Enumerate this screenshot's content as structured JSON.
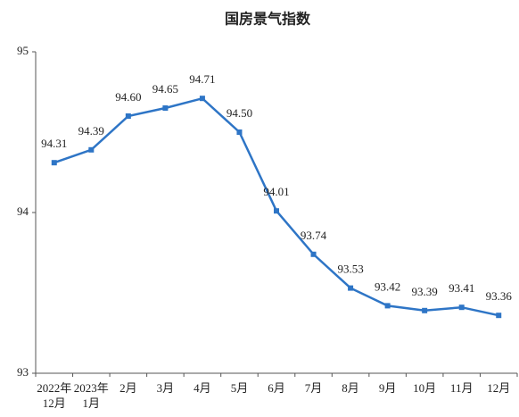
{
  "chart_data": {
    "type": "line",
    "title": "国房景气指数",
    "categories": [
      "2022年\n12月",
      "2023年\n1月",
      "2月",
      "3月",
      "4月",
      "5月",
      "6月",
      "7月",
      "8月",
      "9月",
      "10月",
      "11月",
      "12月"
    ],
    "values": [
      94.31,
      94.39,
      94.6,
      94.65,
      94.71,
      94.5,
      94.01,
      93.74,
      93.53,
      93.42,
      93.39,
      93.41,
      93.36
    ],
    "value_labels": [
      "94.31",
      "94.39",
      "94.60",
      "94.65",
      "94.71",
      "94.50",
      "94.01",
      "93.74",
      "93.53",
      "93.42",
      "93.39",
      "93.41",
      "93.36"
    ],
    "color": "#2e75c6",
    "ylim": [
      93,
      95
    ],
    "yticks": [
      93,
      94,
      95
    ],
    "grid": false
  }
}
